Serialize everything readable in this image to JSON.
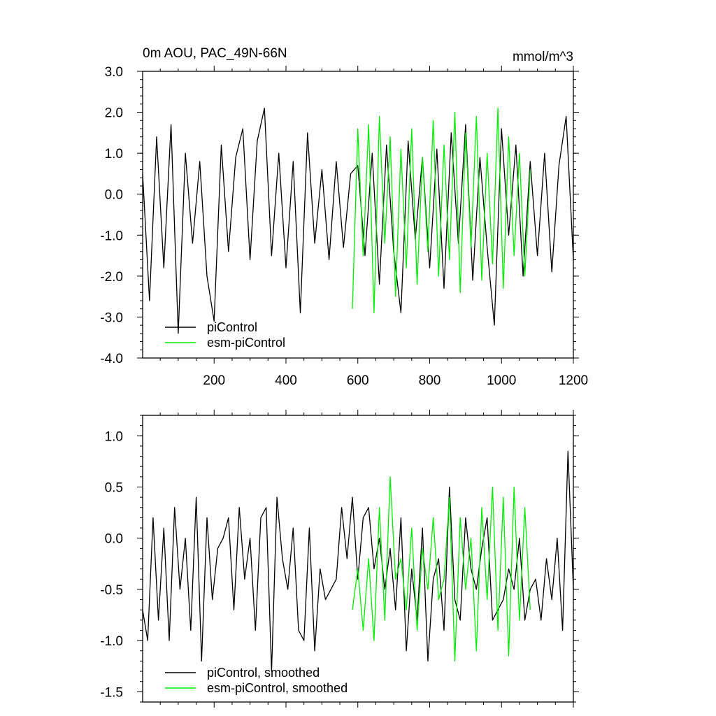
{
  "chart_data": [
    {
      "type": "line",
      "title": "0m AOU, PAC_49N-66N",
      "units": "mmol/m^3",
      "xlim": [
        1,
        1200
      ],
      "ylim": [
        -4.0,
        3.0
      ],
      "x_ticks": [
        200,
        400,
        600,
        800,
        1000,
        1200
      ],
      "x_tick_labels": [
        "200",
        "400",
        "600",
        "800",
        "1000",
        "1200"
      ],
      "y_ticks": [
        3.0,
        2.0,
        1.0,
        0.0,
        -1.0,
        -2.0,
        -3.0,
        -4.0
      ],
      "y_tick_labels": [
        "3.0",
        "2.0",
        "1.0",
        "0.0",
        "-1.0",
        "-2.0",
        "-3.0",
        "-4.0"
      ],
      "grid": false,
      "legend_position": "bottom-left",
      "series": [
        {
          "name": "piControl",
          "color": "#000000",
          "x": [
            1,
            20,
            40,
            60,
            80,
            100,
            120,
            140,
            160,
            180,
            200,
            220,
            240,
            260,
            280,
            300,
            320,
            340,
            360,
            380,
            400,
            420,
            440,
            460,
            480,
            500,
            520,
            540,
            560,
            580,
            600,
            620,
            640,
            660,
            680,
            700,
            720,
            740,
            760,
            780,
            800,
            820,
            840,
            860,
            880,
            900,
            920,
            940,
            960,
            980,
            1000,
            1020,
            1040,
            1060,
            1080,
            1100,
            1120,
            1140,
            1160,
            1180,
            1200
          ],
          "values": [
            0.5,
            -2.6,
            1.4,
            -1.8,
            1.7,
            -3.4,
            1.0,
            -1.2,
            0.8,
            -2.0,
            -3.1,
            1.2,
            -1.4,
            0.9,
            1.6,
            -1.6,
            1.3,
            2.1,
            -1.5,
            1.0,
            -1.8,
            0.8,
            -2.9,
            1.5,
            -1.2,
            0.6,
            -1.6,
            0.8,
            -1.3,
            0.5,
            0.7,
            -1.5,
            1.0,
            -2.2,
            1.2,
            -1.4,
            -2.9,
            1.3,
            -1.1,
            0.9,
            -1.8,
            1.1,
            -2.3,
            1.5,
            -1.2,
            1.7,
            -2.1,
            0.9,
            -1.3,
            -3.2,
            1.6,
            -1.0,
            1.2,
            -2.0,
            0.8,
            -1.5,
            1.0,
            -1.9,
            0.7,
            1.9,
            -1.6
          ]
        },
        {
          "name": "esm-piControl",
          "color": "#00ee00",
          "x": [
            585,
            600,
            615,
            630,
            645,
            660,
            675,
            690,
            705,
            720,
            735,
            750,
            765,
            780,
            795,
            810,
            825,
            840,
            855,
            870,
            885,
            900,
            915,
            930,
            945,
            960,
            975,
            990,
            1005,
            1020,
            1035,
            1050,
            1065,
            1080
          ],
          "values": [
            -2.8,
            1.6,
            -1.5,
            1.7,
            -2.9,
            1.9,
            -1.2,
            1.4,
            -2.5,
            1.1,
            -1.8,
            1.6,
            -2.2,
            0.9,
            -1.4,
            1.8,
            -2.0,
            1.2,
            -1.6,
            2.0,
            -2.4,
            1.5,
            -1.3,
            1.9,
            -2.1,
            1.0,
            -1.7,
            2.1,
            -2.3,
            1.4,
            -1.5,
            1.0,
            -2.0,
            0.6
          ]
        }
      ]
    },
    {
      "type": "line",
      "xlim": [
        1,
        1200
      ],
      "ylim": [
        -1.6,
        1.2
      ],
      "x_ticks": [
        200,
        400,
        600,
        800,
        1000,
        1200
      ],
      "y_ticks": [
        1.0,
        0.5,
        0.0,
        -0.5,
        -1.0,
        -1.5
      ],
      "y_tick_labels": [
        "1.0",
        "0.5",
        "0.0",
        "-0.5",
        "-1.0",
        "-1.5"
      ],
      "grid": false,
      "legend_position": "bottom-left",
      "series": [
        {
          "name": "piControl, smoothed",
          "color": "#000000",
          "x": [
            1,
            15,
            30,
            45,
            60,
            75,
            90,
            105,
            120,
            135,
            150,
            165,
            180,
            195,
            210,
            225,
            240,
            255,
            270,
            285,
            300,
            315,
            330,
            345,
            360,
            375,
            390,
            405,
            420,
            435,
            450,
            465,
            480,
            495,
            510,
            525,
            540,
            555,
            570,
            585,
            600,
            615,
            630,
            645,
            660,
            675,
            690,
            705,
            720,
            735,
            750,
            765,
            780,
            795,
            810,
            825,
            840,
            855,
            870,
            885,
            900,
            915,
            930,
            945,
            960,
            975,
            990,
            1005,
            1020,
            1035,
            1050,
            1065,
            1080,
            1095,
            1110,
            1125,
            1140,
            1155,
            1170,
            1185,
            1200
          ],
          "values": [
            -0.7,
            -1.0,
            0.2,
            -0.8,
            0.1,
            -1.0,
            0.3,
            -0.5,
            0.0,
            -0.9,
            0.4,
            -1.2,
            0.2,
            -0.6,
            -0.1,
            0.0,
            0.2,
            -0.7,
            0.3,
            -0.4,
            0.0,
            -0.9,
            0.2,
            0.3,
            -1.3,
            0.4,
            -0.2,
            -0.5,
            0.1,
            -0.9,
            -1.0,
            0.1,
            -1.1,
            -0.3,
            -0.6,
            -0.5,
            -0.4,
            0.3,
            -0.2,
            0.4,
            -0.4,
            0.2,
            0.3,
            -0.3,
            0.0,
            -0.5,
            -0.1,
            -0.7,
            0.2,
            -1.1,
            -0.3,
            -0.8,
            0.1,
            -1.2,
            -0.4,
            -0.2,
            -0.9,
            0.5,
            -0.6,
            -0.8,
            0.2,
            -0.3,
            -0.5,
            -0.1,
            0.2,
            -0.8,
            -0.7,
            -0.6,
            -0.3,
            -0.5,
            0.0,
            -0.8,
            -0.5,
            -0.4,
            -0.8,
            -0.2,
            -0.6,
            0.0,
            -0.9,
            0.85,
            -0.5
          ]
        },
        {
          "name": "esm-piControl, smoothed",
          "color": "#00ee00",
          "x": [
            585,
            600,
            615,
            630,
            645,
            660,
            675,
            690,
            705,
            720,
            735,
            750,
            765,
            780,
            795,
            810,
            825,
            840,
            855,
            870,
            885,
            900,
            915,
            930,
            945,
            960,
            975,
            990,
            1005,
            1020,
            1035,
            1050,
            1065,
            1080
          ],
          "values": [
            -0.7,
            -0.3,
            -0.9,
            -0.2,
            -1.0,
            0.3,
            -0.8,
            0.6,
            -0.4,
            -0.2,
            -0.7,
            0.1,
            -0.9,
            -0.1,
            -0.5,
            0.2,
            -0.6,
            -0.4,
            0.4,
            -1.2,
            0.2,
            -0.5,
            0.0,
            -1.1,
            0.3,
            -0.6,
            0.5,
            -0.9,
            0.4,
            -1.15,
            0.5,
            -0.8,
            0.3,
            -0.7
          ]
        }
      ]
    }
  ]
}
